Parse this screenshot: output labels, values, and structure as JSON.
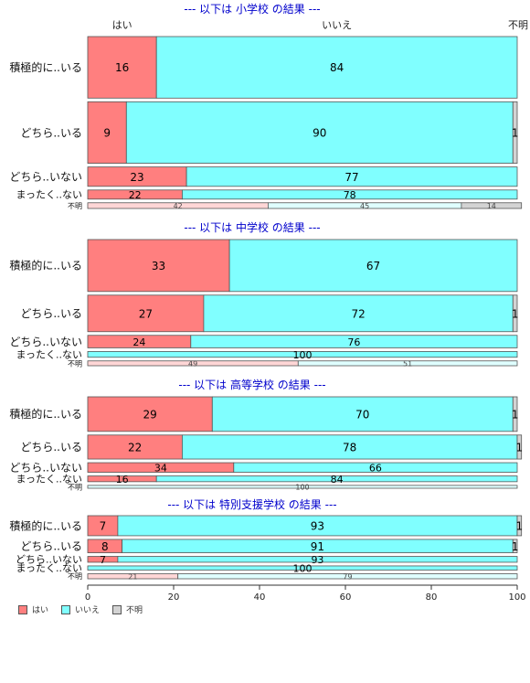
{
  "chart_data": {
    "type": "bar",
    "orientation": "horizontal-stacked-mosaic",
    "top_labels": {
      "yes": "はい",
      "no": "いいえ",
      "unknown": "不明"
    },
    "legend": [
      {
        "name": "はい",
        "color": "#ff7f7f"
      },
      {
        "name": "いいえ",
        "color": "#80ffff"
      },
      {
        "name": "不明",
        "color": "#d3d3d3"
      }
    ],
    "xlim": [
      0,
      100
    ],
    "xticks": [
      0,
      20,
      40,
      60,
      80,
      100
    ],
    "colors": {
      "yes": "#ff7f7f",
      "no": "#80ffff",
      "unknown": "#d3d3d3",
      "yes_light": "#ffd6d6",
      "no_light": "#dfffff",
      "title": "#0000cc"
    },
    "panels": [
      {
        "title": "--- 以下は 小学校 の結果 ---",
        "rows": [
          {
            "label": "積極的に..いる",
            "weight": 54,
            "values": [
              16,
              84,
              0
            ]
          },
          {
            "label": "どちら..いる",
            "weight": 54,
            "values": [
              9,
              90,
              1
            ]
          },
          {
            "label": "どちら..いない",
            "weight": 17,
            "values": [
              23,
              77,
              0
            ]
          },
          {
            "label": "まったく..ない",
            "weight": 8,
            "values": [
              22,
              78,
              0
            ]
          },
          {
            "label": "不明",
            "weight": 5,
            "values": [
              42,
              45,
              14
            ],
            "small": true
          }
        ]
      },
      {
        "title": "--- 以下は 中学校 の結果 ---",
        "rows": [
          {
            "label": "積極的に..いる",
            "weight": 54,
            "values": [
              33,
              67,
              0
            ]
          },
          {
            "label": "どちら..いる",
            "weight": 38,
            "values": [
              27,
              72,
              1
            ]
          },
          {
            "label": "どちら..いない",
            "weight": 13,
            "values": [
              24,
              76,
              0
            ]
          },
          {
            "label": "まったく..ない",
            "weight": 6,
            "values": [
              0,
              100,
              0
            ]
          },
          {
            "label": "不明",
            "weight": 5,
            "values": [
              49,
              51,
              0
            ],
            "small": true
          }
        ]
      },
      {
        "title": "--- 以下は 高等学校 の結果 ---",
        "rows": [
          {
            "label": "積極的に..いる",
            "weight": 36,
            "values": [
              29,
              70,
              1
            ]
          },
          {
            "label": "どちら..いる",
            "weight": 25,
            "values": [
              22,
              78,
              1
            ]
          },
          {
            "label": "どちら..いない",
            "weight": 10,
            "values": [
              34,
              66,
              0
            ]
          },
          {
            "label": "まったく..ない",
            "weight": 6,
            "values": [
              16,
              84,
              0
            ]
          },
          {
            "label": "不明",
            "weight": 3,
            "values": [
              0,
              100,
              0
            ],
            "small": true
          }
        ]
      },
      {
        "title": "--- 以下は 特別支援学校 の結果 ---",
        "rows": [
          {
            "label": "積極的に..いる",
            "weight": 24,
            "values": [
              7,
              93,
              1
            ]
          },
          {
            "label": "どちら..いる",
            "weight": 16,
            "values": [
              8,
              91,
              1
            ]
          },
          {
            "label": "どちら..いない",
            "weight": 7,
            "values": [
              7,
              93,
              0
            ]
          },
          {
            "label": "まったく..ない",
            "weight": 5,
            "values": [
              0,
              100,
              0
            ]
          },
          {
            "label": "不明",
            "weight": 6,
            "values": [
              21,
              79,
              0
            ],
            "small": true
          }
        ]
      }
    ]
  }
}
